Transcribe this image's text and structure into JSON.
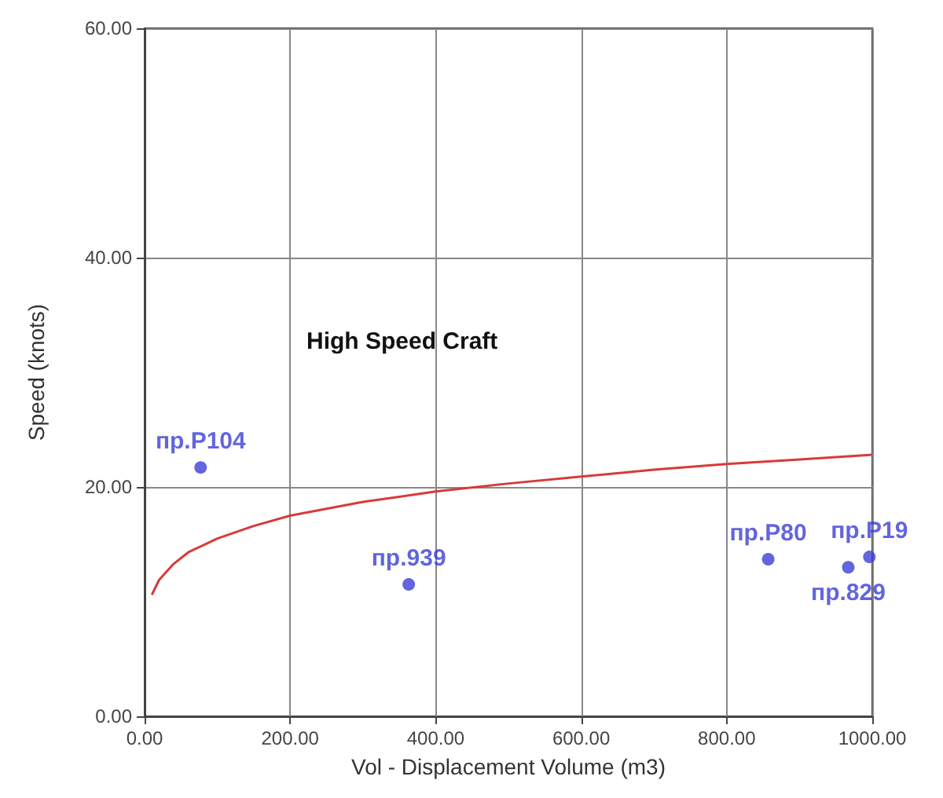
{
  "chart_data": {
    "type": "scatter",
    "xlabel": "Vol - Displacement Volume (m3)",
    "ylabel": "Speed (knots)",
    "annotations": [
      "High Speed Craft"
    ],
    "xlim": [
      0,
      1000
    ],
    "xticks": [
      {
        "value": 0,
        "label": "0.00"
      },
      {
        "value": 200,
        "label": "200.00"
      },
      {
        "value": 400,
        "label": "400.00"
      },
      {
        "value": 600,
        "label": "600.00"
      },
      {
        "value": 800,
        "label": "800.00"
      },
      {
        "value": 1000,
        "label": "1000.00"
      }
    ],
    "ylim": [
      0,
      60
    ],
    "yticks": [
      {
        "value": 0,
        "label": "0.00"
      },
      {
        "value": 20,
        "label": "20.00"
      },
      {
        "value": 40,
        "label": "40.00"
      },
      {
        "value": 60,
        "label": "60.00"
      }
    ],
    "grid": true,
    "legend": false,
    "marker": "circle",
    "series": [
      {
        "name": "пр.P104",
        "color": "#3b3fd6",
        "x": [
          77
        ],
        "values": [
          21.7
        ]
      },
      {
        "name": "пр.939",
        "color": "#3b3fd6",
        "x": [
          363
        ],
        "values": [
          11.5
        ]
      },
      {
        "name": "пр.P80",
        "color": "#3b3fd6",
        "x": [
          857
        ],
        "values": [
          13.7
        ]
      },
      {
        "name": "пр.829",
        "color": "#3b3fd6",
        "x": [
          967
        ],
        "values": [
          13.0
        ]
      },
      {
        "name": "пр.P19",
        "color": "#3b3fd6",
        "x": [
          996
        ],
        "values": [
          13.9
        ]
      },
      {
        "type": "line",
        "marker": "none",
        "color": "#d83a3a",
        "x": [
          10,
          20,
          40,
          60,
          100,
          150,
          200,
          300,
          400,
          500,
          600,
          700,
          800,
          900,
          1000
        ],
        "values": [
          10.6,
          11.9,
          13.3,
          14.3,
          15.5,
          16.6,
          17.5,
          18.7,
          19.6,
          20.3,
          20.9,
          21.5,
          22.0,
          22.4,
          22.8
        ]
      }
    ]
  }
}
